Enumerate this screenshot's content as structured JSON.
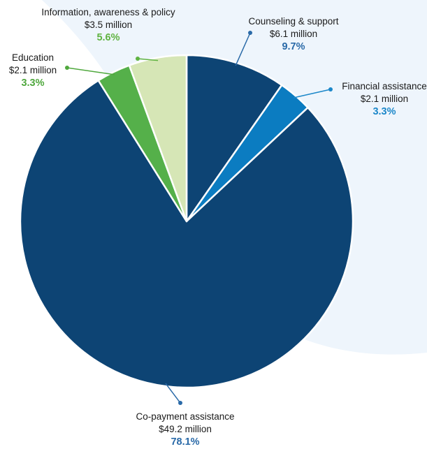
{
  "chart_data": {
    "type": "pie",
    "title": "",
    "slices": [
      {
        "name": "Counseling & support",
        "amount": "$6.1 million",
        "value": 9.7,
        "percent_label": "9.7%",
        "color": "#0d4474",
        "label_color": "#2a6aa8"
      },
      {
        "name": "Financial assistance",
        "amount": "$2.1 million",
        "value": 3.3,
        "percent_label": "3.3%",
        "color": "#0b7cc1",
        "label_color": "#1b87c9"
      },
      {
        "name": "Co-payment assistance",
        "amount": "$49.2 million",
        "value": 78.1,
        "percent_label": "78.1%",
        "color": "#0d4474",
        "label_color": "#2a6aa8"
      },
      {
        "name": "Education",
        "amount": "$2.1 million",
        "value": 3.3,
        "percent_label": "3.3%",
        "color": "#55b04a",
        "label_color": "#4fa83d"
      },
      {
        "name": "Information, awareness & policy",
        "amount": "$3.5 million",
        "value": 5.6,
        "percent_label": "5.6%",
        "color": "#d6e6b6",
        "label_color": "#5fb341"
      }
    ]
  },
  "colors": {
    "background_swoosh": "#eef5fc",
    "slice_border": "#ffffff"
  }
}
